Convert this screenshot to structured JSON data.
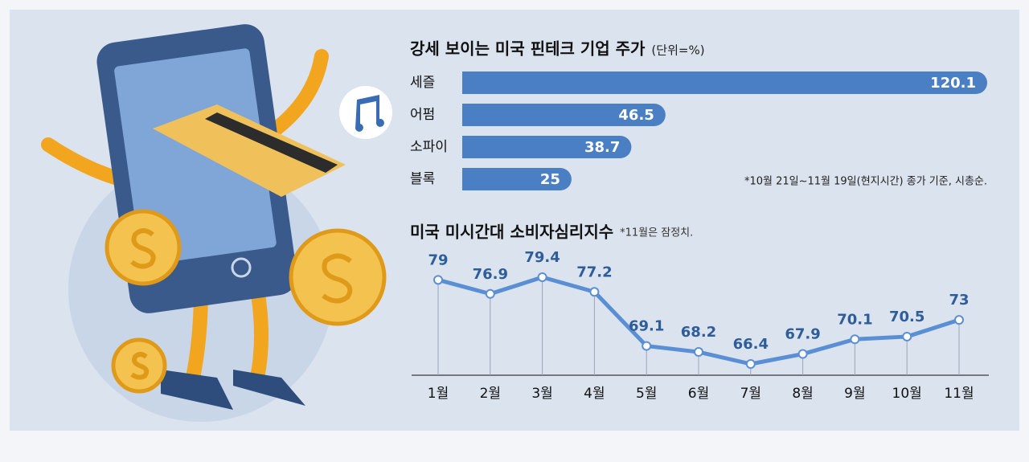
{
  "chart_data": [
    {
      "type": "hbar",
      "title": "강세 보이는 미국 핀테크 기업 주가",
      "unit": "(단위=%)",
      "categories": [
        "세즐",
        "어펌",
        "소파이",
        "블록"
      ],
      "values": [
        120.1,
        46.5,
        38.7,
        25
      ],
      "color": "#4a7fc3",
      "note": "*10월 21일~11월 19일(현지시간) 종가 기준, 시총순."
    },
    {
      "type": "line",
      "title": "미국 미시간대 소비자심리지수",
      "note": "*11월은 잠정치.",
      "categories": [
        "1월",
        "2월",
        "3월",
        "4월",
        "5월",
        "6월",
        "7월",
        "8월",
        "9월",
        "10월",
        "11월"
      ],
      "values": [
        79,
        76.9,
        79.4,
        77.2,
        69.1,
        68.2,
        66.4,
        67.9,
        70.1,
        70.5,
        73
      ],
      "color": "#5b8fd4"
    }
  ]
}
